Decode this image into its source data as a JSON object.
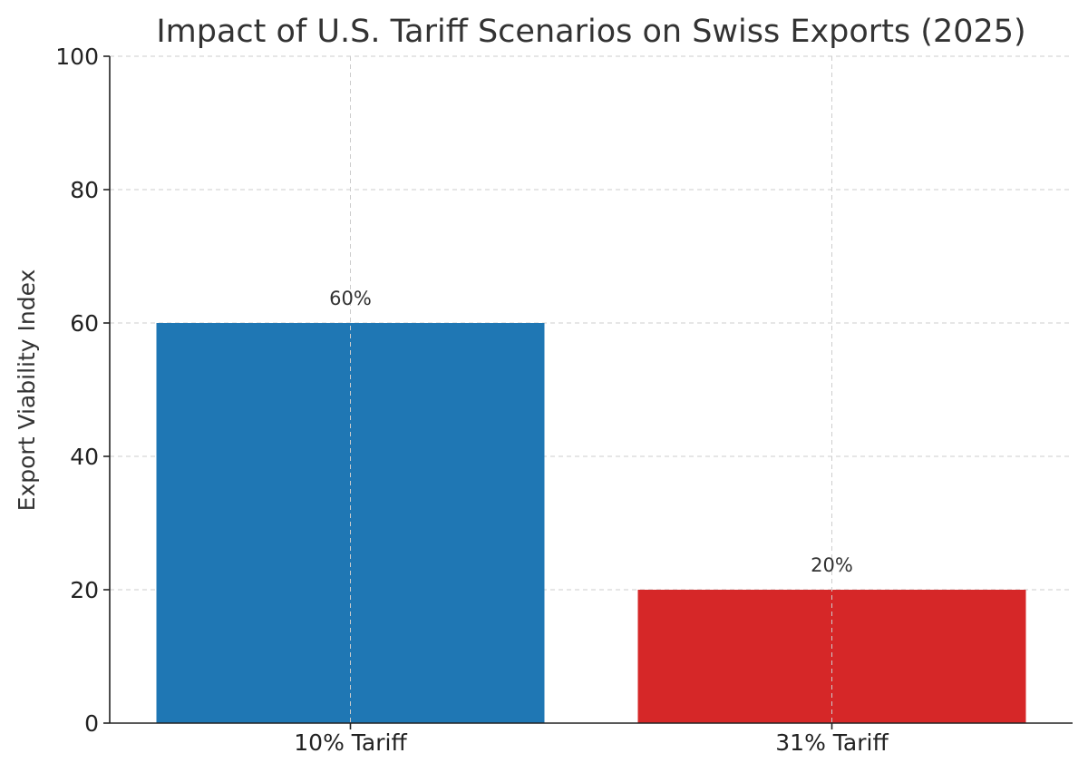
{
  "chart_data": {
    "type": "bar",
    "title": "Impact of U.S. Tariff Scenarios on Swiss Exports (2025)",
    "xlabel": "",
    "ylabel": "Export Viability Index",
    "categories": [
      "10% Tariff",
      "31% Tariff"
    ],
    "values": [
      60,
      20
    ],
    "data_labels": [
      "60%",
      "20%"
    ],
    "colors": [
      "#1f77b4",
      "#d62728"
    ],
    "ylim": [
      0,
      100
    ],
    "yticks": [
      "0",
      "20",
      "40",
      "60",
      "80",
      "100"
    ],
    "grid": true,
    "legend": "none"
  }
}
